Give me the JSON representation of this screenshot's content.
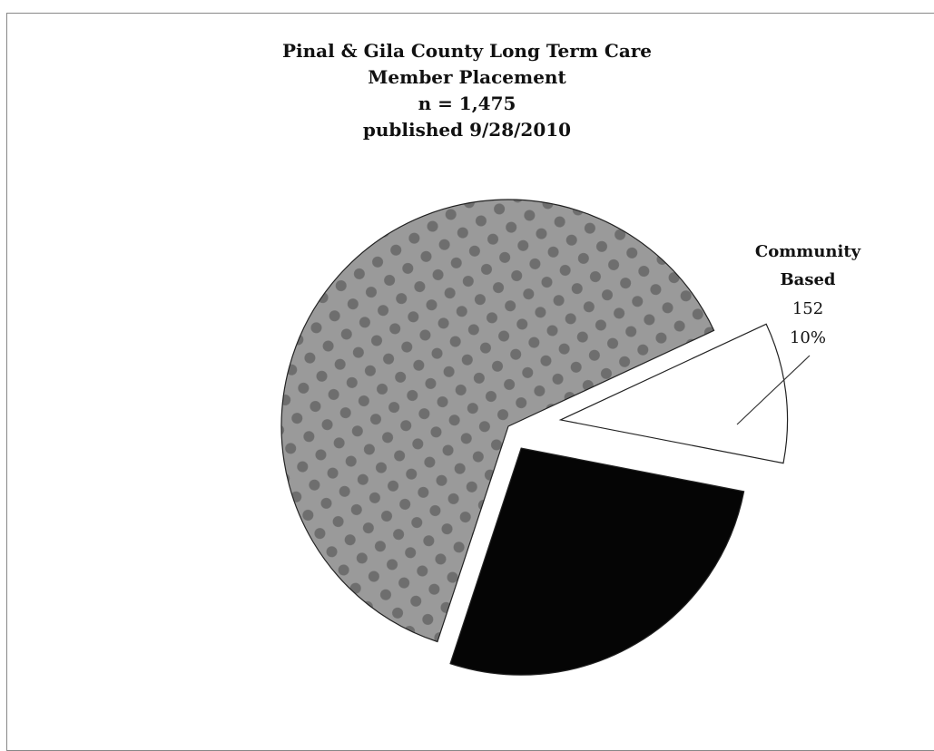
{
  "chart_data": {
    "type": "pie",
    "title": [
      "Pinal & Gila County Long Term Care",
      "Member Placement",
      "n = 1,475",
      "published 9/28/2010"
    ],
    "slices": [
      {
        "name": "Community Based",
        "count": 152,
        "percent": 10,
        "fill": "#ffffff",
        "labeled": true
      },
      {
        "name": "",
        "count": null,
        "percent": 27,
        "fill": "#050505",
        "labeled": false
      },
      {
        "name": "",
        "count": null,
        "percent": 63,
        "fill": "#9a9a9a",
        "labeled": false
      }
    ]
  },
  "labels": {
    "community_name_1": "Community",
    "community_name_2": "Based",
    "community_count": "152",
    "community_pct": "10%"
  }
}
